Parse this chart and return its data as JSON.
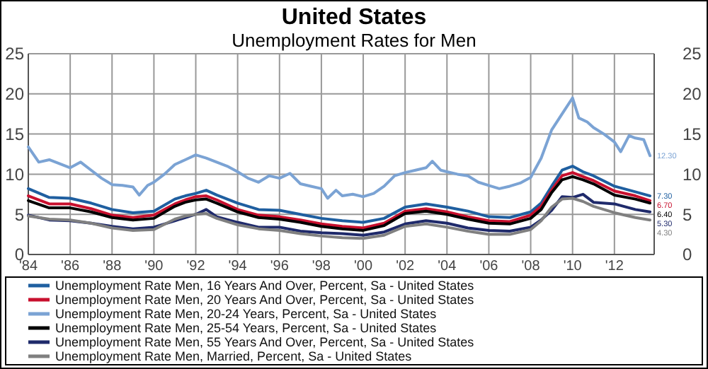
{
  "chart_data": {
    "type": "line",
    "title": "United States",
    "subtitle": "Unemployment Rates for Men",
    "x": [
      1984,
      1985,
      1986,
      1987,
      1988,
      1989,
      1990,
      1991,
      1991.5,
      1992,
      1992.5,
      1993,
      1994,
      1995,
      1996,
      1997,
      1998,
      1999,
      2000,
      2001,
      2002,
      2003,
      2004,
      2005,
      2006,
      2007,
      2008,
      2008.5,
      2009,
      2009.5,
      2010,
      2010.5,
      2011,
      2012,
      2013,
      2013.7
    ],
    "xlim": [
      1984,
      2013.9
    ],
    "xticks": [
      {
        "value": 1984,
        "label": "'84"
      },
      {
        "value": 1986,
        "label": "'86"
      },
      {
        "value": 1988,
        "label": "'88"
      },
      {
        "value": 1990,
        "label": "'90"
      },
      {
        "value": 1992,
        "label": "'92"
      },
      {
        "value": 1994,
        "label": "'94"
      },
      {
        "value": 1996,
        "label": "'96"
      },
      {
        "value": 1998,
        "label": "'98"
      },
      {
        "value": 2000,
        "label": "'00"
      },
      {
        "value": 2002,
        "label": "'02"
      },
      {
        "value": 2004,
        "label": "'04"
      },
      {
        "value": 2006,
        "label": "'06"
      },
      {
        "value": 2008,
        "label": "'08"
      },
      {
        "value": 2010,
        "label": "'10"
      },
      {
        "value": 2012,
        "label": "'12"
      }
    ],
    "ylim": [
      0,
      25
    ],
    "yticks": [
      0,
      5,
      10,
      15,
      20,
      25
    ],
    "y2lim": [
      0,
      25
    ],
    "y2ticks": [
      0,
      5,
      10,
      15,
      20,
      25
    ],
    "grid": true,
    "legend": "bottom",
    "marker": "none",
    "line_style": "solid",
    "series": [
      {
        "name": "Unemployment Rate Men, 16 Years And Over, Percent, Sa - United States",
        "color": "#1f5fa0",
        "values": [
          8.2,
          7.1,
          7.0,
          6.4,
          5.6,
          5.2,
          5.4,
          6.9,
          7.3,
          7.6,
          8.0,
          7.4,
          6.4,
          5.6,
          5.5,
          5.0,
          4.5,
          4.2,
          4.0,
          4.5,
          5.9,
          6.3,
          5.9,
          5.4,
          4.7,
          4.6,
          5.3,
          6.4,
          8.5,
          10.5,
          11.0,
          10.3,
          9.8,
          8.5,
          7.8,
          7.3
        ],
        "value_labels": [
          null,
          null,
          null,
          null,
          null,
          null,
          null,
          null,
          null,
          null,
          null,
          null,
          null,
          null,
          null,
          null,
          null,
          null,
          null,
          null,
          null,
          null,
          null,
          null,
          null,
          null,
          null,
          null,
          null,
          null,
          null,
          null,
          null,
          null,
          null,
          "7.30"
        ]
      },
      {
        "name": "Unemployment Rate Men, 20 Years And Over, Percent, Sa - United States",
        "color": "#c8102e",
        "values": [
          7.3,
          6.3,
          6.3,
          5.7,
          4.9,
          4.6,
          4.9,
          6.3,
          6.8,
          7.2,
          7.3,
          6.8,
          5.6,
          4.9,
          4.7,
          4.3,
          3.8,
          3.5,
          3.3,
          3.9,
          5.4,
          5.7,
          5.3,
          4.7,
          4.2,
          4.1,
          4.9,
          6.0,
          8.0,
          9.8,
          10.2,
          9.7,
          9.2,
          7.9,
          7.3,
          6.7
        ],
        "value_labels": [
          null,
          null,
          null,
          null,
          null,
          null,
          null,
          null,
          null,
          null,
          null,
          null,
          null,
          null,
          null,
          null,
          null,
          null,
          null,
          null,
          null,
          null,
          null,
          null,
          null,
          null,
          null,
          null,
          null,
          null,
          null,
          null,
          null,
          null,
          null,
          "6.70"
        ]
      },
      {
        "name": "Unemployment Rate Men, 20-24 Years, Percent, Sa - United States",
        "color": "#7ba3d4",
        "x": [
          1984,
          1984.5,
          1985,
          1986,
          1986.5,
          1987,
          1987.5,
          1988,
          1988.5,
          1989,
          1989.3,
          1989.7,
          1990,
          1990.5,
          1991,
          1991.5,
          1992,
          1992.5,
          1993,
          1993.5,
          1994,
          1994.5,
          1995,
          1995.5,
          1996,
          1996.5,
          1997,
          1997.5,
          1998,
          1998.3,
          1998.7,
          1999,
          1999.5,
          2000,
          2000.5,
          2001,
          2001.5,
          2002,
          2002.5,
          2003,
          2003.3,
          2003.7,
          2004,
          2004.5,
          2005,
          2005.5,
          2006,
          2006.5,
          2007,
          2007.5,
          2008,
          2008.5,
          2009,
          2009.5,
          2010,
          2010.3,
          2010.7,
          2011,
          2011.5,
          2012,
          2012.3,
          2012.7,
          2013,
          2013.4,
          2013.7
        ],
        "values": [
          13.4,
          11.5,
          11.8,
          10.8,
          11.5,
          10.5,
          9.5,
          8.7,
          8.6,
          8.4,
          7.4,
          8.6,
          9.0,
          10.0,
          11.2,
          11.8,
          12.4,
          12.0,
          11.5,
          11.0,
          10.3,
          9.5,
          9.0,
          9.8,
          9.5,
          10.1,
          8.8,
          8.5,
          8.2,
          7.0,
          8.0,
          7.3,
          7.5,
          7.2,
          7.6,
          8.5,
          9.8,
          10.2,
          10.5,
          10.8,
          11.6,
          10.5,
          10.3,
          10.0,
          9.8,
          9.0,
          8.6,
          8.2,
          8.5,
          8.9,
          9.6,
          12.0,
          15.5,
          17.5,
          19.5,
          17.0,
          16.5,
          15.8,
          15.0,
          14.0,
          12.8,
          14.8,
          14.5,
          14.3,
          12.3
        ],
        "value_labels": [
          null,
          null,
          null,
          null,
          null,
          null,
          null,
          null,
          null,
          null,
          null,
          null,
          null,
          null,
          null,
          null,
          null,
          null,
          null,
          null,
          null,
          null,
          null,
          null,
          null,
          null,
          null,
          null,
          null,
          null,
          null,
          null,
          null,
          null,
          null,
          null,
          null,
          null,
          null,
          null,
          null,
          null,
          null,
          null,
          null,
          null,
          null,
          null,
          null,
          null,
          null,
          null,
          null,
          null,
          null,
          null,
          null,
          null,
          null,
          null,
          null,
          null,
          null,
          null,
          "12.30"
        ]
      },
      {
        "name": "Unemployment Rate Men, 25-54 Years, Percent, Sa - United States",
        "color": "#000000",
        "values": [
          6.7,
          5.8,
          5.8,
          5.3,
          4.6,
          4.3,
          4.5,
          6.0,
          6.5,
          6.8,
          6.9,
          6.4,
          5.3,
          4.6,
          4.4,
          4.0,
          3.5,
          3.2,
          3.0,
          3.6,
          5.1,
          5.4,
          5.0,
          4.4,
          3.9,
          3.8,
          4.5,
          5.6,
          7.7,
          9.3,
          9.7,
          9.3,
          8.8,
          7.4,
          6.9,
          6.4
        ],
        "value_labels": [
          null,
          null,
          null,
          null,
          null,
          null,
          null,
          null,
          null,
          null,
          null,
          null,
          null,
          null,
          null,
          null,
          null,
          null,
          null,
          null,
          null,
          null,
          null,
          null,
          null,
          null,
          null,
          null,
          null,
          null,
          null,
          null,
          null,
          null,
          null,
          "6.40"
        ]
      },
      {
        "name": "Unemployment Rate Men, 55 Years And Over, Percent, Sa - United States",
        "color": "#1f2a6b",
        "values": [
          4.9,
          4.3,
          4.2,
          3.9,
          3.5,
          3.2,
          3.4,
          4.2,
          4.6,
          5.0,
          5.6,
          4.7,
          4.0,
          3.4,
          3.4,
          2.9,
          2.7,
          2.6,
          2.4,
          2.8,
          3.8,
          4.2,
          3.9,
          3.3,
          3.0,
          2.9,
          3.4,
          4.3,
          5.5,
          7.2,
          7.1,
          7.5,
          6.5,
          6.3,
          5.6,
          5.3
        ],
        "value_labels": [
          null,
          null,
          null,
          null,
          null,
          null,
          null,
          null,
          null,
          null,
          null,
          null,
          null,
          null,
          null,
          null,
          null,
          null,
          null,
          null,
          null,
          null,
          null,
          null,
          null,
          null,
          null,
          null,
          null,
          null,
          null,
          null,
          null,
          null,
          null,
          "5.30"
        ]
      },
      {
        "name": "Unemployment Rate Men, Married, Percent, Sa - United States",
        "color": "#808080",
        "values": [
          4.8,
          4.4,
          4.3,
          3.9,
          3.3,
          3.0,
          3.1,
          4.4,
          4.8,
          5.0,
          5.1,
          4.5,
          3.7,
          3.2,
          3.0,
          2.6,
          2.3,
          2.1,
          2.0,
          2.4,
          3.5,
          3.8,
          3.4,
          2.9,
          2.5,
          2.5,
          3.1,
          4.2,
          5.9,
          6.9,
          7.0,
          6.6,
          6.0,
          5.2,
          4.6,
          4.3
        ],
        "value_labels": [
          null,
          null,
          null,
          null,
          null,
          null,
          null,
          null,
          null,
          null,
          null,
          null,
          null,
          null,
          null,
          null,
          null,
          null,
          null,
          null,
          null,
          null,
          null,
          null,
          null,
          null,
          null,
          null,
          null,
          null,
          null,
          null,
          null,
          null,
          null,
          "4.30"
        ]
      }
    ]
  }
}
